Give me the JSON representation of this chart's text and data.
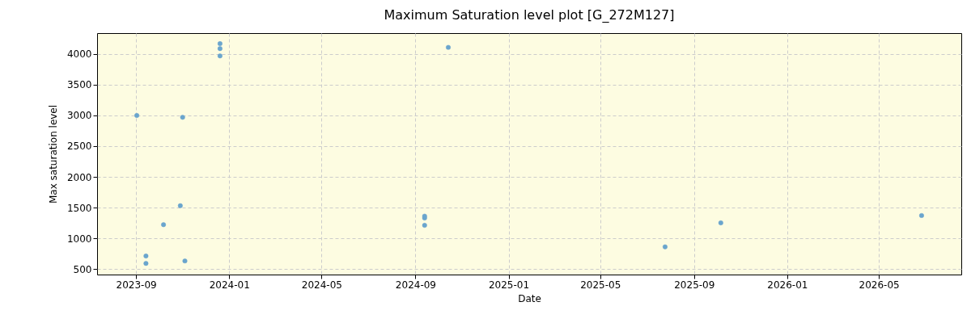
{
  "chart_data": {
    "type": "scatter",
    "title": "Maximum Saturation level plot [G_272M127]",
    "xlabel": "Date",
    "ylabel": "Max saturation level",
    "x": [
      "2023-09-02",
      "2023-09-14",
      "2023-09-14",
      "2023-10-07",
      "2023-10-29",
      "2023-11-01",
      "2023-11-04",
      "2023-12-20",
      "2023-12-20",
      "2023-12-20",
      "2024-09-13",
      "2024-09-13",
      "2024-09-13",
      "2024-10-14",
      "2025-07-25",
      "2025-10-06",
      "2026-06-26"
    ],
    "values": [
      3000,
      710,
      590,
      1220,
      1530,
      2970,
      630,
      4170,
      4090,
      3970,
      1360,
      1330,
      1210,
      4110,
      860,
      1250,
      1370
    ],
    "color": "#6aa5cd",
    "marker": "circle",
    "grid": true,
    "xlim": [
      "2023-07-12",
      "2026-08-17"
    ],
    "xticks": [
      "2023-09",
      "2024-01",
      "2024-05",
      "2024-09",
      "2025-01",
      "2025-05",
      "2025-09",
      "2026-01",
      "2026-05"
    ],
    "ylim": [
      408,
      4342
    ],
    "yticks": [
      500,
      1000,
      1500,
      2000,
      2500,
      3000,
      3500,
      4000
    ]
  }
}
